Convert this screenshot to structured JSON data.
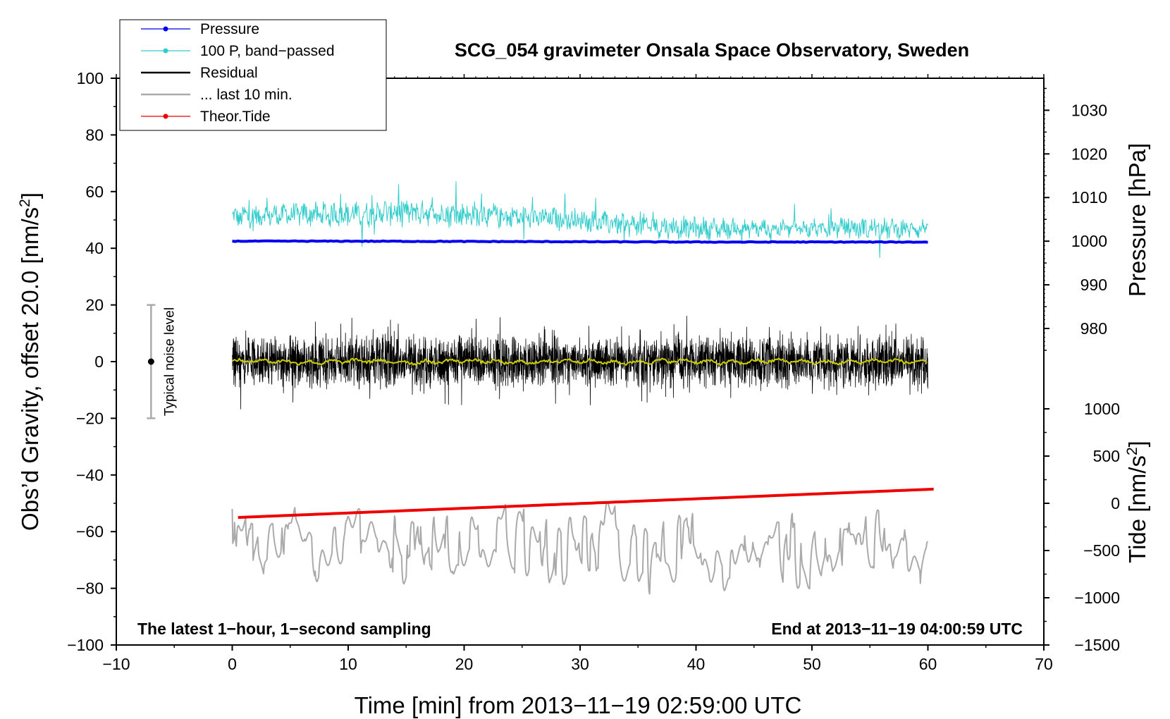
{
  "chart_data": {
    "type": "line",
    "title": "SCG_054 gravimeter Onsala Space Observatory, Sweden",
    "xlabel": "Time [min] from 2013−11−19 02:59:00 UTC",
    "ylabel_left_main": "Obs’d Gravity, offset 20.0 [nm/s",
    "ylabel_left_sup": "2",
    "ylabel_left_end": "]",
    "ylabel_right_pressure": "Pressure [hPa]",
    "ylabel_right_tide_main": "Tide [nm/s",
    "ylabel_right_tide_sup": "2",
    "ylabel_right_tide_end": "]",
    "xlim": [
      -10,
      70
    ],
    "ylim": [
      -100,
      100
    ],
    "xticks": [
      -10,
      0,
      10,
      20,
      30,
      40,
      50,
      60,
      70
    ],
    "xtick_labels": [
      "−10",
      "0",
      "10",
      "20",
      "30",
      "40",
      "50",
      "60",
      "70"
    ],
    "yticks": [
      -100,
      -80,
      -60,
      -40,
      -20,
      0,
      20,
      40,
      60,
      80,
      100
    ],
    "ytick_labels": [
      "−100",
      "−80",
      "−60",
      "−40",
      "−20",
      "0",
      "20",
      "40",
      "60",
      "80",
      "100"
    ],
    "pressure_axis": {
      "ticks": [
        980,
        990,
        1000,
        1010,
        1020,
        1030
      ],
      "tick_labels": [
        "980",
        "990",
        "1000",
        "1010",
        "1020",
        "1030"
      ],
      "gravity_at_1000": 42.5,
      "gravity_per_hPa": 1.54
    },
    "tide_axis": {
      "ticks": [
        -1500,
        -1000,
        -500,
        0,
        500,
        1000
      ],
      "tick_labels": [
        "−1500",
        "−1000",
        "−500",
        "0",
        "500",
        "1000"
      ],
      "gravity_at_0": -50,
      "gravity_per_unit": 0.0333333
    },
    "legend": [
      {
        "label": "Pressure",
        "color": "#0000ee",
        "marker": true
      },
      {
        "label": "100 P, band−passed",
        "color": "#33cccc",
        "marker": true
      },
      {
        "label": "Residual",
        "color": "#000000",
        "marker": false
      },
      {
        "label": "... last 10 min.",
        "color": "#aaaaaa",
        "marker": false
      },
      {
        "label": "Theor.Tide",
        "color": "#ee0000",
        "marker": true
      }
    ],
    "series": [
      {
        "name": "Pressure",
        "color": "#0000ee",
        "x": [
          0,
          10,
          20,
          30,
          40,
          50,
          60
        ],
        "y": [
          42.5,
          42.5,
          42.4,
          42.3,
          42.2,
          42.2,
          42.2
        ]
      },
      {
        "name": "100 P, band−passed",
        "color": "#33cccc",
        "x": [
          0,
          5,
          10,
          15,
          20,
          25,
          30,
          35,
          40,
          45,
          50,
          55,
          60
        ],
        "y_center": [
          51,
          52,
          52,
          53,
          52,
          51,
          50,
          48,
          47,
          47,
          47,
          47,
          47
        ],
        "amplitude": [
          4,
          4,
          5,
          5,
          5,
          4,
          4,
          4,
          4,
          3,
          3,
          4,
          3
        ]
      },
      {
        "name": "Residual",
        "color": "#000000",
        "x_range": [
          0,
          60
        ],
        "center": 0,
        "range": [
          -23,
          24
        ]
      },
      {
        "name": "Residual mean",
        "color": "#cccc00",
        "x_range": [
          0,
          60
        ],
        "center": 0
      },
      {
        "name": "... last 10 min.",
        "color": "#aaaaaa",
        "x_range": [
          0,
          60
        ],
        "center": -65,
        "range": [
          -82,
          -48
        ]
      },
      {
        "name": "Theor.Tide",
        "color": "#ee0000",
        "x": [
          0.5,
          60.5
        ],
        "y": [
          -55,
          -45
        ]
      }
    ],
    "noise_level": {
      "label": "Typical noise level",
      "x": -7,
      "y_range": [
        -20,
        20
      ],
      "center": 0
    },
    "annotations": {
      "bottom_left": "The latest 1−hour, 1−second sampling",
      "bottom_right": "End at 2013−11−19 04:00:59 UTC"
    }
  }
}
